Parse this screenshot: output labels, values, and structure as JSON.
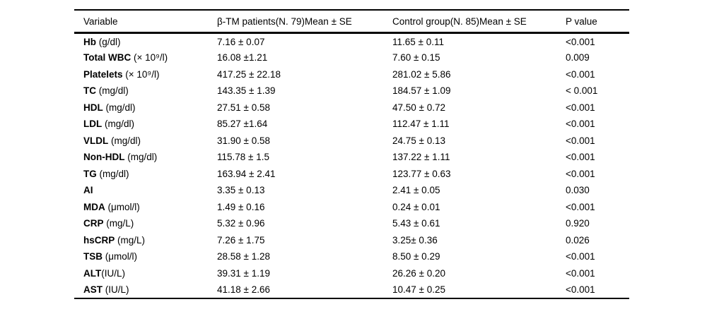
{
  "table": {
    "columns": [
      "Variable",
      "β-TM patients(N. 79)Mean ± SE",
      "Control group(N. 85)Mean ± SE",
      "P value"
    ],
    "rows": [
      {
        "label": "Hb",
        "unit": " (g/dl)",
        "patients": "7.16 ± 0.07",
        "control": "11.65 ± 0.11",
        "p": "<0.001"
      },
      {
        "label": "Total WBC",
        "unit": " (× 10⁹/l)",
        "patients": "16.08 ±1.21",
        "control": "7.60 ± 0.15",
        "p": "0.009"
      },
      {
        "label": "Platelets",
        "unit": " (× 10⁹/l)",
        "patients": "417.25 ± 22.18",
        "control": "281.02 ± 5.86",
        "p": "<0.001"
      },
      {
        "label": "TC",
        "unit": " (mg/dl)",
        "patients": "143.35 ± 1.39",
        "control": "184.57 ± 1.09",
        "p": "< 0.001"
      },
      {
        "label": "HDL",
        "unit": " (mg/dl)",
        "patients": "27.51 ± 0.58",
        "control": "47.50 ± 0.72",
        "p": "<0.001"
      },
      {
        "label": "LDL",
        "unit": " (mg/dl)",
        "patients": "85.27 ±1.64",
        "control": "112.47 ± 1.11",
        "p": "<0.001"
      },
      {
        "label": "VLDL",
        "unit": " (mg/dl)",
        "patients": "31.90 ± 0.58",
        "control": "24.75 ± 0.13",
        "p": "<0.001"
      },
      {
        "label": "Non-HDL",
        "unit": " (mg/dl)",
        "patients": "115.78 ± 1.5",
        "control": "137.22 ± 1.11",
        "p": "<0.001"
      },
      {
        "label": "TG",
        "unit": " (mg/dl)",
        "patients": "163.94 ± 2.41",
        "control": "123.77 ± 0.63",
        "p": "<0.001"
      },
      {
        "label": "AI",
        "unit": "",
        "patients": "3.35 ± 0.13",
        "control": "2.41 ± 0.05",
        "p": "0.030"
      },
      {
        "label": "MDA",
        "unit": " (μmol/l)",
        "patients": "1.49 ± 0.16",
        "control": "0.24 ± 0.01",
        "p": "<0.001"
      },
      {
        "label": "CRP",
        "unit": " (mg/L)",
        "patients": "5.32 ± 0.96",
        "control": "5.43 ± 0.61",
        "p": "0.920"
      },
      {
        "label": "hsCRP",
        "unit": " (mg/L)",
        "patients": "7.26 ± 1.75",
        "control": "3.25± 0.36",
        "p": "0.026"
      },
      {
        "label": "TSB",
        "unit": " (μmol/l)",
        "patients": "28.58 ± 1.28",
        "control": "8.50 ± 0.29",
        "p": "<0.001"
      },
      {
        "label": "ALT",
        "unit": "(IU/L)",
        "patients": "39.31 ± 1.19",
        "control": "26.26 ± 0.20",
        "p": "<0.001"
      },
      {
        "label": "AST",
        "unit": " (IU/L)",
        "patients": "41.18 ± 2.66",
        "control": "10.47 ± 0.25",
        "p": "<0.001"
      }
    ]
  }
}
